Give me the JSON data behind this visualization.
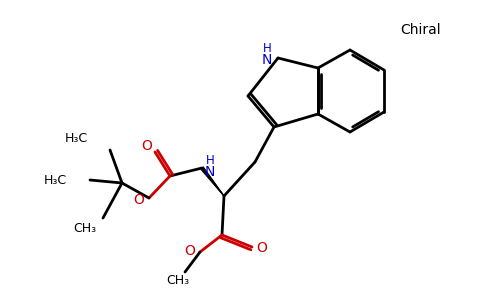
{
  "bg_color": "#ffffff",
  "black": "#000000",
  "red": "#cc0000",
  "blue": "#0000cc",
  "line_width": 2.0,
  "figsize": [
    4.84,
    3.0
  ],
  "dpi": 100,
  "chiral_label": "Chiral",
  "nh_label": "N",
  "h_label": "H",
  "o_label": "O",
  "h3c_label": "H₃C",
  "ch3_label": "CH₃"
}
